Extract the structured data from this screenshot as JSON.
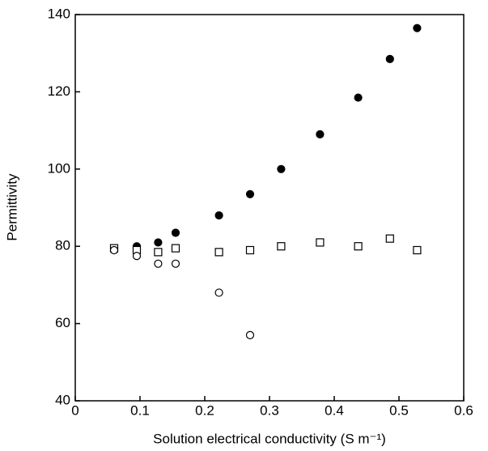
{
  "chart_data": {
    "type": "scatter",
    "xlabel": "Solution electrical conductivity (S m⁻¹)",
    "ylabel": "Permittivity",
    "x": [
      0.06,
      0.095,
      0.128,
      0.155,
      0.222,
      0.27,
      0.318,
      0.378,
      0.437,
      0.486,
      0.528
    ],
    "series": [
      {
        "color": "#000000",
        "marker": "filled-circle",
        "values": [
          79.5,
          80,
          81,
          83.5,
          88,
          93.5,
          100,
          109,
          118.5,
          128.5,
          136.5
        ]
      },
      {
        "color": "#000000",
        "marker": "open-square",
        "values": [
          79.5,
          79,
          78.5,
          79.5,
          78.5,
          79,
          80,
          81,
          80,
          82,
          79
        ]
      },
      {
        "color": "#000000",
        "marker": "open-circle",
        "values": [
          79,
          77.5,
          75.5,
          75.5,
          68,
          57,
          null,
          null,
          null,
          null,
          null
        ]
      }
    ],
    "xlim": [
      0,
      0.6
    ],
    "xticks": [
      0,
      0.1,
      0.2,
      0.3,
      0.4,
      0.5,
      0.6
    ],
    "ylim": [
      40,
      140
    ],
    "yticks": [
      40,
      60,
      80,
      100,
      120,
      140
    ],
    "grid": false
  }
}
